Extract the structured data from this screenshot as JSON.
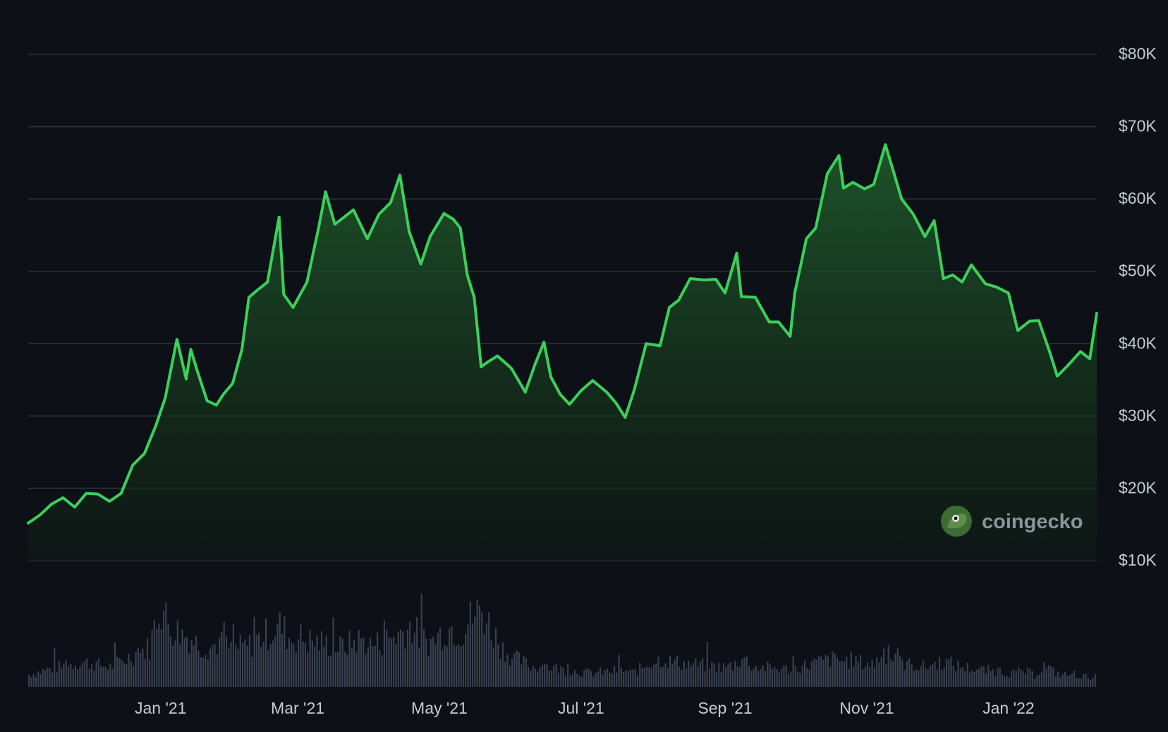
{
  "watermark": {
    "brand": "coingecko"
  },
  "colors": {
    "background": "#0d1117",
    "line": "#3ccf5a",
    "area_top": "#1f5a2a",
    "grid": "#2a3038",
    "volume": "#3a4150",
    "tick_text": "#c4cbd4"
  },
  "chart_data": {
    "type": "area",
    "title": "",
    "xlabel": "",
    "ylabel": "",
    "ylim": [
      10000,
      80000
    ],
    "y_ticks": [
      {
        "value": 80000,
        "label": "$80K"
      },
      {
        "value": 70000,
        "label": "$70K"
      },
      {
        "value": 60000,
        "label": "$60K"
      },
      {
        "value": 50000,
        "label": "$50K"
      },
      {
        "value": 40000,
        "label": "$40K"
      },
      {
        "value": 30000,
        "label": "$30K"
      },
      {
        "value": 20000,
        "label": "$20K"
      },
      {
        "value": 10000,
        "label": "$10K"
      }
    ],
    "x_range": [
      "2020-11-05",
      "2022-02-08"
    ],
    "x_ticks": [
      {
        "date": "2021-01-01",
        "label": "Jan '21"
      },
      {
        "date": "2021-03-01",
        "label": "Mar '21"
      },
      {
        "date": "2021-05-01",
        "label": "May '21"
      },
      {
        "date": "2021-07-01",
        "label": "Jul '21"
      },
      {
        "date": "2021-09-01",
        "label": "Sep '21"
      },
      {
        "date": "2021-11-01",
        "label": "Nov '21"
      },
      {
        "date": "2022-01-01",
        "label": "Jan '22"
      }
    ],
    "grid": true,
    "series": [
      {
        "name": "",
        "x": [
          "2020-11-05",
          "2020-11-10",
          "2020-11-15",
          "2020-11-20",
          "2020-11-25",
          "2020-11-30",
          "2020-12-05",
          "2020-12-10",
          "2020-12-15",
          "2020-12-20",
          "2020-12-25",
          "2020-12-30",
          "2021-01-03",
          "2021-01-08",
          "2021-01-12",
          "2021-01-14",
          "2021-01-17",
          "2021-01-21",
          "2021-01-25",
          "2021-01-28",
          "2021-02-01",
          "2021-02-05",
          "2021-02-08",
          "2021-02-12",
          "2021-02-16",
          "2021-02-21",
          "2021-02-23",
          "2021-02-27",
          "2021-03-05",
          "2021-03-10",
          "2021-03-13",
          "2021-03-17",
          "2021-03-21",
          "2021-03-25",
          "2021-03-31",
          "2021-04-05",
          "2021-04-10",
          "2021-04-14",
          "2021-04-18",
          "2021-04-23",
          "2021-04-27",
          "2021-05-03",
          "2021-05-07",
          "2021-05-10",
          "2021-05-13",
          "2021-05-16",
          "2021-05-19",
          "2021-05-22",
          "2021-05-26",
          "2021-06-01",
          "2021-06-07",
          "2021-06-11",
          "2021-06-15",
          "2021-06-18",
          "2021-06-22",
          "2021-06-26",
          "2021-07-01",
          "2021-07-06",
          "2021-07-12",
          "2021-07-16",
          "2021-07-20",
          "2021-07-24",
          "2021-07-29",
          "2021-08-04",
          "2021-08-08",
          "2021-08-12",
          "2021-08-17",
          "2021-08-23",
          "2021-08-28",
          "2021-09-01",
          "2021-09-06",
          "2021-09-08",
          "2021-09-14",
          "2021-09-20",
          "2021-09-24",
          "2021-09-29",
          "2021-10-01",
          "2021-10-06",
          "2021-10-10",
          "2021-10-15",
          "2021-10-20",
          "2021-10-22",
          "2021-10-26",
          "2021-10-31",
          "2021-11-04",
          "2021-11-09",
          "2021-11-12",
          "2021-11-16",
          "2021-11-21",
          "2021-11-26",
          "2021-11-30",
          "2021-12-04",
          "2021-12-08",
          "2021-12-12",
          "2021-12-16",
          "2021-12-22",
          "2021-12-27",
          "2022-01-01",
          "2022-01-05",
          "2022-01-10",
          "2022-01-14",
          "2022-01-19",
          "2022-01-22",
          "2022-01-26",
          "2022-02-01",
          "2022-02-05",
          "2022-02-08"
        ],
        "y": [
          15200,
          16300,
          17800,
          18700,
          17400,
          19300,
          19200,
          18200,
          19300,
          23200,
          24800,
          28700,
          32500,
          40600,
          35100,
          39200,
          36000,
          32100,
          31500,
          33000,
          34500,
          39200,
          46400,
          47500,
          48500,
          57500,
          46800,
          45000,
          48500,
          56000,
          61000,
          56500,
          57500,
          58500,
          54500,
          57900,
          59500,
          63300,
          55500,
          51000,
          54800,
          58000,
          57200,
          56000,
          49500,
          46400,
          36800,
          37500,
          38300,
          36600,
          33300,
          37000,
          40200,
          35400,
          33000,
          31600,
          33500,
          34900,
          33300,
          31800,
          29800,
          33700,
          40000,
          39700,
          45000,
          46000,
          49000,
          48800,
          48900,
          47000,
          52500,
          46500,
          46400,
          43000,
          43000,
          41000,
          47000,
          54500,
          56000,
          63500,
          66000,
          61500,
          62300,
          61400,
          62000,
          67500,
          64300,
          60000,
          57900,
          54800,
          57000,
          49000,
          49500,
          48500,
          50900,
          48300,
          47800,
          47000,
          41800,
          43100,
          43200,
          38600,
          35500,
          36800,
          38900,
          37900,
          44200
        ]
      }
    ],
    "volume": {
      "note_units": "relative",
      "values": [
        0.12,
        0.15,
        0.18,
        0.2,
        0.22,
        0.25,
        0.24,
        0.22,
        0.2,
        0.25,
        0.3,
        0.35,
        0.4,
        0.85,
        0.6,
        0.55,
        0.5,
        0.42,
        0.4,
        0.45,
        0.38,
        0.4,
        0.42,
        0.5,
        0.55,
        0.62,
        0.48,
        0.5,
        0.46,
        0.45,
        0.42,
        0.4,
        0.44,
        0.48,
        0.42,
        0.45,
        0.5,
        0.55,
        0.62,
        0.48,
        0.45,
        0.55,
        0.6,
        0.55,
        0.7,
        0.78,
        0.58,
        0.4,
        0.3,
        0.26,
        0.2,
        0.22,
        0.2,
        0.18,
        0.16,
        0.15,
        0.14,
        0.15,
        0.16,
        0.17,
        0.14,
        0.2,
        0.26,
        0.28,
        0.25,
        0.24,
        0.23,
        0.22,
        0.21,
        0.2,
        0.22,
        0.3,
        0.2,
        0.2,
        0.19,
        0.18,
        0.18,
        0.21,
        0.24,
        0.26,
        0.28,
        0.26,
        0.27,
        0.24,
        0.23,
        0.36,
        0.25,
        0.24,
        0.22,
        0.2,
        0.23,
        0.26,
        0.22,
        0.2,
        0.18,
        0.17,
        0.16,
        0.15,
        0.14,
        0.16,
        0.12,
        0.22,
        0.14,
        0.12,
        0.13,
        0.1,
        0.11
      ]
    },
    "legend": "none"
  }
}
